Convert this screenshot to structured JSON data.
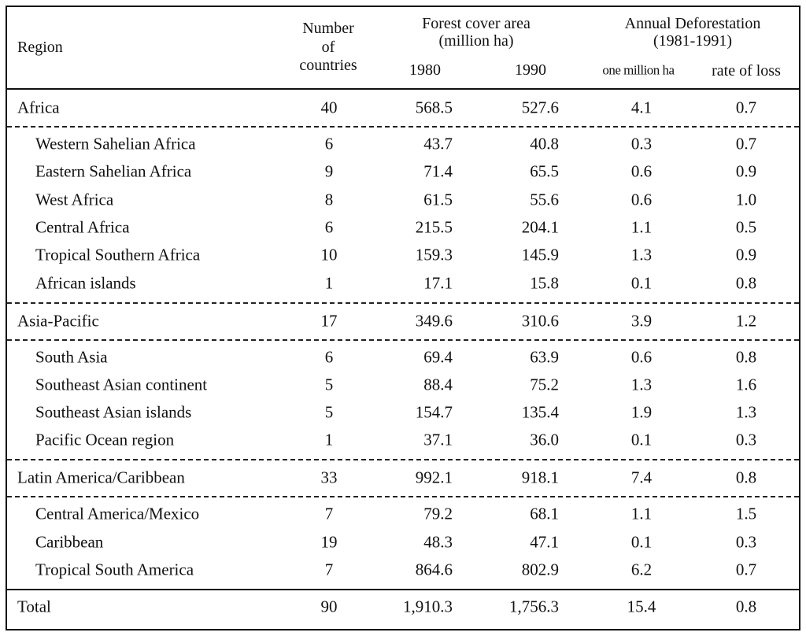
{
  "header": {
    "region": "Region",
    "countries": [
      "Number",
      "of",
      "countries"
    ],
    "forest": [
      "Forest cover area",
      "(million ha)"
    ],
    "years": [
      "1980",
      "1990"
    ],
    "deforestation": [
      "Annual Deforestation",
      "(1981-1991)"
    ],
    "deforestation_cols": [
      "one million ha",
      "rate of loss"
    ]
  },
  "groups": [
    {
      "row": [
        "Africa",
        "40",
        "568.5",
        "527.6",
        "4.1",
        "0.7"
      ],
      "subregions": [
        [
          "Western Sahelian Africa",
          "6",
          "43.7",
          "40.8",
          "0.3",
          "0.7"
        ],
        [
          "Eastern Sahelian Africa",
          "9",
          "71.4",
          "65.5",
          "0.6",
          "0.9"
        ],
        [
          "West Africa",
          "8",
          "61.5",
          "55.6",
          "0.6",
          "1.0"
        ],
        [
          "Central Africa",
          "6",
          "215.5",
          "204.1",
          "1.1",
          "0.5"
        ],
        [
          "Tropical Southern Africa",
          "10",
          "159.3",
          "145.9",
          "1.3",
          "0.9"
        ],
        [
          "African islands",
          "1",
          "17.1",
          "15.8",
          "0.1",
          "0.8"
        ]
      ]
    },
    {
      "row": [
        "Asia-Pacific",
        "17",
        "349.6",
        "310.6",
        "3.9",
        "1.2"
      ],
      "subregions": [
        [
          "South Asia",
          "6",
          "69.4",
          "63.9",
          "0.6",
          "0.8"
        ],
        [
          "Southeast Asian continent",
          "5",
          "88.4",
          "75.2",
          "1.3",
          "1.6"
        ],
        [
          "Southeast Asian islands",
          "5",
          "154.7",
          "135.4",
          "1.9",
          "1.3"
        ],
        [
          "Pacific Ocean region",
          "1",
          "37.1",
          "36.0",
          "0.1",
          "0.3"
        ]
      ]
    },
    {
      "row": [
        "Latin America/Caribbean",
        "33",
        "992.1",
        "918.1",
        "7.4",
        "0.8"
      ],
      "subregions": [
        [
          "Central America/Mexico",
          "7",
          "79.2",
          "68.1",
          "1.1",
          "1.5"
        ],
        [
          "Caribbean",
          "19",
          "48.3",
          "47.1",
          "0.1",
          "0.3"
        ],
        [
          "Tropical South America",
          "7",
          "864.6",
          "802.9",
          "6.2",
          "0.7"
        ]
      ]
    }
  ],
  "total": [
    "Total",
    "90",
    "1,910.3",
    "1,756.3",
    "15.4",
    "0.8"
  ]
}
